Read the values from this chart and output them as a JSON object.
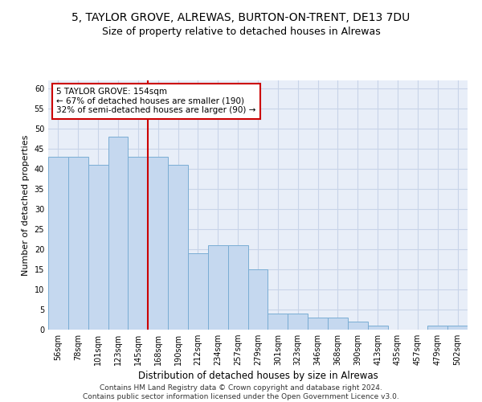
{
  "title1": "5, TAYLOR GROVE, ALREWAS, BURTON-ON-TRENT, DE13 7DU",
  "title2": "Size of property relative to detached houses in Alrewas",
  "xlabel": "Distribution of detached houses by size in Alrewas",
  "ylabel": "Number of detached properties",
  "categories": [
    "56sqm",
    "78sqm",
    "101sqm",
    "123sqm",
    "145sqm",
    "168sqm",
    "190sqm",
    "212sqm",
    "234sqm",
    "257sqm",
    "279sqm",
    "301sqm",
    "323sqm",
    "346sqm",
    "368sqm",
    "390sqm",
    "413sqm",
    "435sqm",
    "457sqm",
    "479sqm",
    "502sqm"
  ],
  "values": [
    43,
    43,
    41,
    48,
    43,
    43,
    41,
    19,
    21,
    21,
    15,
    4,
    4,
    3,
    3,
    2,
    1,
    0,
    0,
    1,
    1
  ],
  "bar_color": "#c5d8ef",
  "bar_edge_color": "#7aadd4",
  "vline_color": "#cc0000",
  "annotation_text": "5 TAYLOR GROVE: 154sqm\n← 67% of detached houses are smaller (190)\n32% of semi-detached houses are larger (90) →",
  "annotation_box_color": "#cc0000",
  "ylim": [
    0,
    62
  ],
  "yticks": [
    0,
    5,
    10,
    15,
    20,
    25,
    30,
    35,
    40,
    45,
    50,
    55,
    60
  ],
  "grid_color": "#c8d4e8",
  "bg_color": "#e8eef8",
  "footer": "Contains HM Land Registry data © Crown copyright and database right 2024.\nContains public sector information licensed under the Open Government Licence v3.0.",
  "title1_fontsize": 10,
  "title2_fontsize": 9,
  "xlabel_fontsize": 8.5,
  "ylabel_fontsize": 8,
  "tick_fontsize": 7,
  "annot_fontsize": 7.5,
  "footer_fontsize": 6.5
}
